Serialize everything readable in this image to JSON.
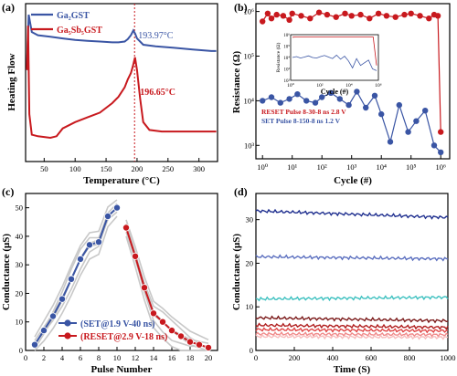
{
  "chart_data": [
    {
      "panel": "(a)",
      "type": "line",
      "xlabel": "Temperature (°C)",
      "ylabel": "Heating Flow",
      "xlim": [
        20,
        330
      ],
      "xticks": [
        50,
        100,
        150,
        200,
        250,
        300
      ],
      "series": [
        {
          "name": "Ga₂GST",
          "color": "#3a55a4",
          "x": [
            22,
            25,
            30,
            40,
            60,
            80,
            100,
            120,
            140,
            160,
            170,
            180,
            185,
            190,
            193.97,
            197,
            200,
            210,
            230,
            260,
            290,
            320,
            328
          ],
          "y": [
            0.58,
            0.93,
            0.82,
            0.8,
            0.79,
            0.78,
            0.77,
            0.765,
            0.76,
            0.755,
            0.755,
            0.76,
            0.775,
            0.8,
            0.83,
            0.81,
            0.78,
            0.74,
            0.73,
            0.72,
            0.71,
            0.7,
            0.7
          ]
        },
        {
          "name": "Ga₅Sb₅GST",
          "color": "#c8191e",
          "x": [
            22,
            24,
            26,
            30,
            40,
            60,
            70,
            80,
            100,
            120,
            140,
            160,
            170,
            180,
            185,
            190,
            193,
            196.65,
            200,
            205,
            210,
            220,
            240,
            260,
            280,
            300,
            320,
            328
          ],
          "y": [
            0.58,
            0.86,
            0.3,
            0.17,
            0.16,
            0.15,
            0.16,
            0.21,
            0.25,
            0.28,
            0.31,
            0.37,
            0.41,
            0.47,
            0.52,
            0.56,
            0.6,
            0.66,
            0.58,
            0.4,
            0.25,
            0.2,
            0.19,
            0.19,
            0.19,
            0.19,
            0.19,
            0.19
          ]
        }
      ],
      "annotations": [
        "193.97°C",
        "196.65°C"
      ],
      "dashed_vline_x": 196
    },
    {
      "panel": "(b)",
      "type": "scatter",
      "xlabel": "Cycle (#)",
      "ylabel": "Resistance (Ω)",
      "xscale": "log",
      "yscale": "log",
      "xlim": [
        1,
        1000000
      ],
      "ylim": [
        500,
        1000000
      ],
      "xticks": [
        "10⁰",
        "10¹",
        "10²",
        "10³",
        "10⁴",
        "10⁵",
        "10⁶"
      ],
      "yticks": [
        "10³",
        "10⁴",
        "10⁵",
        "10⁶"
      ],
      "series": [
        {
          "name": "RESET Pulse 8-30-8 ns 2.8 V",
          "color": "#c8191e",
          "x": [
            1,
            1.5,
            2,
            3,
            5,
            8,
            10,
            20,
            40,
            80,
            150,
            300,
            600,
            1000,
            2000,
            4000,
            8000,
            15000,
            30000,
            60000,
            100000,
            200000,
            400000,
            600000,
            800000,
            1000000
          ],
          "y": [
            600000,
            900000,
            700000,
            850000,
            800000,
            650000,
            900000,
            800000,
            700000,
            950000,
            850000,
            750000,
            900000,
            800000,
            850000,
            700000,
            900000,
            800000,
            750000,
            850000,
            900000,
            800000,
            700000,
            850000,
            800000,
            2000
          ]
        },
        {
          "name": "SET Pulse 8-150-8 ns 1.2 V",
          "color": "#3a55a4",
          "x": [
            1,
            2,
            4,
            8,
            15,
            30,
            60,
            100,
            200,
            400,
            800,
            1500,
            3000,
            6000,
            10000,
            20000,
            40000,
            80000,
            150000,
            300000,
            600000,
            1000000
          ],
          "y": [
            10000,
            12000,
            9000,
            11000,
            14000,
            10000,
            9000,
            12000,
            15000,
            11000,
            8000,
            16000,
            7000,
            13000,
            5000,
            1200,
            8000,
            2000,
            3500,
            6000,
            1000,
            700
          ]
        }
      ],
      "inset": {
        "xlabel": "Cycle (#)",
        "ylabel": "Resistance (Ω)",
        "xticks": [
          "10⁰",
          "10²",
          "10⁴",
          "10⁶"
        ],
        "yticks": [
          "10²",
          "10³",
          "10⁴",
          "10⁵",
          "10⁶"
        ]
      }
    },
    {
      "panel": "(c)",
      "type": "line",
      "xlabel": "Pulse Number",
      "ylabel": "Conductance (μS)",
      "xlim": [
        0,
        21
      ],
      "ylim": [
        0,
        55
      ],
      "xticks": [
        0,
        2,
        4,
        6,
        8,
        10,
        12,
        14,
        16,
        18,
        20
      ],
      "yticks": [
        0,
        10,
        20,
        30,
        40,
        50
      ],
      "series": [
        {
          "name": "(SET@1.9 V-40 ns)",
          "color": "#3a55a4",
          "x": [
            1,
            2,
            3,
            4,
            5,
            6,
            7,
            8,
            9,
            10
          ],
          "y": [
            2,
            7,
            12,
            18,
            25,
            32,
            37,
            38,
            47,
            50
          ]
        },
        {
          "name": "(RESET@2.9 V-18 ns)",
          "color": "#c8191e",
          "x": [
            11,
            12,
            13,
            14,
            15,
            16,
            17,
            18,
            19,
            20
          ],
          "y": [
            43,
            33,
            22,
            13,
            10,
            7,
            5,
            3,
            2,
            1
          ]
        }
      ],
      "background_series_color": "#c8c8c8"
    },
    {
      "panel": "(d)",
      "type": "line",
      "xlabel": "Time (S)",
      "ylabel": "Conductance (μS)",
      "xlim": [
        0,
        1000
      ],
      "ylim": [
        0,
        36
      ],
      "xticks": [
        0,
        200,
        400,
        600,
        800,
        1000
      ],
      "yticks": [
        0,
        10,
        20,
        30
      ],
      "series": [
        {
          "color": "#1f2f8f",
          "x": [
            0,
            1000
          ],
          "y": [
            32,
            30.5
          ]
        },
        {
          "color": "#5b6fbf",
          "x": [
            0,
            1000
          ],
          "y": [
            21.5,
            21
          ]
        },
        {
          "color": "#3ec1c0",
          "x": [
            0,
            1000
          ],
          "y": [
            11.8,
            12.2
          ]
        },
        {
          "color": "#7b1a1a",
          "x": [
            0,
            1000
          ],
          "y": [
            7.5,
            6.8
          ]
        },
        {
          "color": "#b01e1e",
          "x": [
            0,
            1000
          ],
          "y": [
            5.8,
            5.3
          ]
        },
        {
          "color": "#e04646",
          "x": [
            0,
            1000
          ],
          "y": [
            4.8,
            4.5
          ]
        },
        {
          "color": "#f08a8a",
          "x": [
            0,
            1000
          ],
          "y": [
            3.8,
            3.6
          ]
        },
        {
          "color": "#f7bcbc",
          "x": [
            0,
            1000
          ],
          "y": [
            3.2,
            3.0
          ]
        }
      ]
    }
  ]
}
